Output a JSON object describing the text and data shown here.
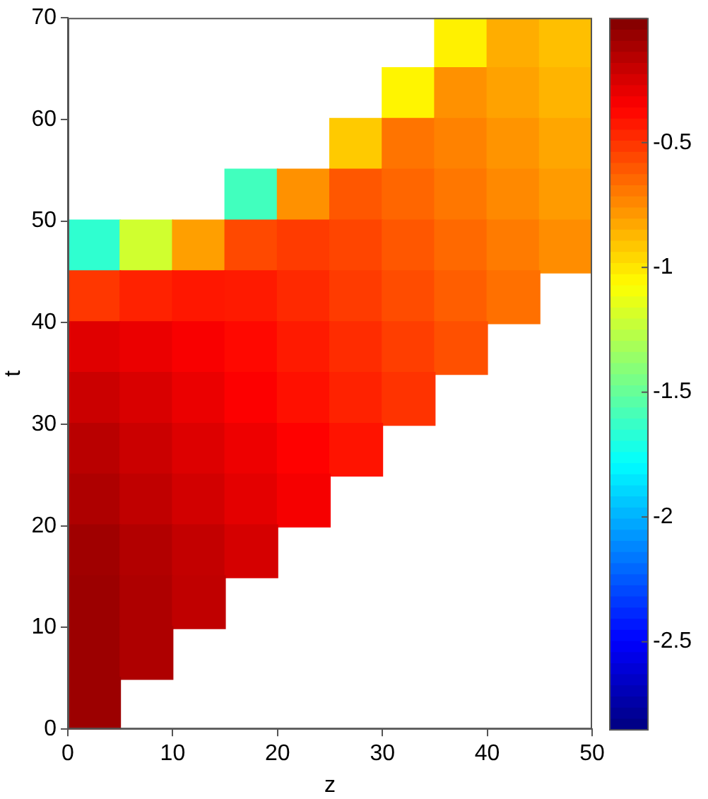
{
  "chart_data": {
    "type": "scatter",
    "xlabel": "z",
    "ylabel": "t",
    "marker": "square",
    "xlim": [
      0,
      50
    ],
    "xticks": [
      0,
      10,
      20,
      30,
      40,
      50
    ],
    "ylim": [
      0,
      70
    ],
    "yticks": [
      0,
      10,
      20,
      30,
      40,
      50,
      60,
      70
    ],
    "clim": [
      -2.85,
      0
    ],
    "cticks": [
      -0.5,
      -1,
      -1.5,
      -2,
      -2.5
    ],
    "grid": false,
    "x": [
      37.5,
      42.5,
      47.5,
      32.5,
      37.5,
      42.5,
      47.5,
      27.5,
      32.5,
      37.5,
      42.5,
      47.5,
      17.5,
      22.5,
      27.5,
      32.5,
      37.5,
      42.5,
      47.5,
      2.5,
      7.5,
      12.5,
      17.5,
      22.5,
      27.5,
      32.5,
      37.5,
      42.5,
      47.5,
      2.5,
      7.5,
      12.5,
      17.5,
      22.5,
      27.5,
      32.5,
      37.5,
      42.5,
      2.5,
      7.5,
      12.5,
      17.5,
      22.5,
      27.5,
      32.5,
      37.5,
      2.5,
      7.5,
      12.5,
      17.5,
      22.5,
      27.5,
      32.5,
      2.5,
      7.5,
      12.5,
      17.5,
      22.5,
      27.5,
      2.5,
      7.5,
      12.5,
      17.5,
      22.5,
      2.5,
      7.5,
      12.5,
      17.5,
      2.5,
      7.5,
      12.5,
      2.5,
      7.5,
      2.5
    ],
    "values": [
      67.5,
      67.5,
      67.5,
      62.5,
      62.5,
      62.5,
      62.5,
      57.5,
      57.5,
      57.5,
      57.5,
      57.5,
      52.5,
      52.5,
      52.5,
      52.5,
      52.5,
      52.5,
      52.5,
      47.5,
      47.5,
      47.5,
      47.5,
      47.5,
      47.5,
      47.5,
      47.5,
      47.5,
      47.5,
      42.5,
      42.5,
      42.5,
      42.5,
      42.5,
      42.5,
      42.5,
      42.5,
      42.5,
      37.5,
      37.5,
      37.5,
      37.5,
      37.5,
      37.5,
      37.5,
      37.5,
      32.5,
      32.5,
      32.5,
      32.5,
      32.5,
      32.5,
      32.5,
      27.5,
      27.5,
      27.5,
      27.5,
      27.5,
      27.5,
      22.5,
      22.5,
      22.5,
      22.5,
      22.5,
      17.5,
      17.5,
      17.5,
      17.5,
      12.5,
      12.5,
      12.5,
      7.5,
      7.5,
      2.5
    ],
    "cvalues": [
      -1.03,
      -0.84,
      -0.89,
      -1.04,
      -0.76,
      -0.81,
      -0.86,
      -0.92,
      -0.68,
      -0.72,
      -0.77,
      -0.82,
      -1.6,
      -0.76,
      -0.6,
      -0.64,
      -0.69,
      -0.74,
      -0.79,
      -1.65,
      -1.2,
      -0.8,
      -0.56,
      -0.52,
      -0.55,
      -0.6,
      -0.65,
      -0.7,
      -0.75,
      -0.51,
      -0.45,
      -0.42,
      -0.43,
      -0.47,
      -0.52,
      -0.57,
      -0.62,
      -0.67,
      -0.27,
      -0.3,
      -0.34,
      -0.38,
      -0.43,
      -0.48,
      -0.53,
      -0.58,
      -0.21,
      -0.25,
      -0.3,
      -0.35,
      -0.4,
      -0.45,
      -0.5,
      -0.16,
      -0.21,
      -0.26,
      -0.31,
      -0.36,
      -0.41,
      -0.13,
      -0.18,
      -0.23,
      -0.28,
      -0.33,
      -0.09,
      -0.14,
      -0.19,
      -0.24,
      -0.08,
      -0.13,
      -0.18,
      -0.08,
      -0.13,
      -0.08
    ]
  }
}
